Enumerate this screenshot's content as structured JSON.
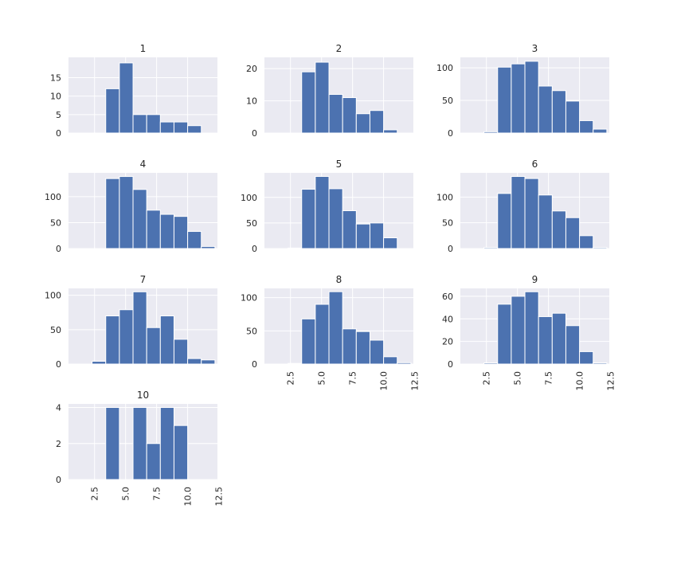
{
  "chart_data": {
    "type": "histogram-grid",
    "x_ticks": [
      "2.5",
      "5.0",
      "7.5",
      "10.0",
      "12.5"
    ],
    "x_tick_values": [
      2.5,
      5.0,
      7.5,
      10.0,
      12.5
    ],
    "xlim": [
      0.4,
      12.4
    ],
    "bin_edges": [
      1.2,
      2.3,
      3.4,
      4.5,
      5.6,
      6.7,
      7.8,
      8.9,
      10.0,
      11.1,
      12.2
    ],
    "bar_color": "#4c72b0",
    "background_color": "#eaeaf2",
    "grid": true,
    "panels": [
      {
        "title": "1",
        "values": [
          0,
          0,
          12,
          19,
          5,
          5,
          3,
          3,
          2,
          0
        ],
        "ylim": [
          0,
          20.5
        ],
        "yticks": [
          0,
          5,
          10,
          15
        ],
        "ytick_labels": [
          "0",
          "5",
          "10",
          "15"
        ]
      },
      {
        "title": "2",
        "values": [
          0,
          0,
          19,
          22,
          12,
          11,
          6,
          7,
          1,
          0
        ],
        "ylim": [
          0,
          23.5
        ],
        "yticks": [
          0,
          10,
          20
        ],
        "ytick_labels": [
          "0",
          "10",
          "20"
        ]
      },
      {
        "title": "3",
        "values": [
          0,
          2,
          101,
          106,
          110,
          72,
          65,
          49,
          19,
          6
        ],
        "ylim": [
          0,
          116
        ],
        "yticks": [
          0,
          50,
          100
        ],
        "ytick_labels": [
          "0",
          "50",
          "100"
        ]
      },
      {
        "title": "4",
        "values": [
          0,
          0,
          135,
          139,
          114,
          74,
          66,
          62,
          33,
          4
        ],
        "ylim": [
          0,
          146
        ],
        "yticks": [
          0,
          50,
          100
        ],
        "ytick_labels": [
          "0",
          "50",
          "100"
        ]
      },
      {
        "title": "5",
        "values": [
          0,
          1,
          116,
          141,
          117,
          74,
          48,
          50,
          21,
          0
        ],
        "ylim": [
          0,
          148
        ],
        "yticks": [
          0,
          50,
          100
        ],
        "ytick_labels": [
          "0",
          "50",
          "100"
        ]
      },
      {
        "title": "6",
        "values": [
          0,
          2,
          107,
          140,
          136,
          104,
          73,
          60,
          25,
          2
        ],
        "ylim": [
          0,
          147
        ],
        "yticks": [
          0,
          50,
          100
        ],
        "ytick_labels": [
          "0",
          "50",
          "100"
        ]
      },
      {
        "title": "7",
        "values": [
          0,
          4,
          70,
          79,
          105,
          53,
          70,
          36,
          8,
          6
        ],
        "ylim": [
          0,
          110
        ],
        "yticks": [
          0,
          50,
          100
        ],
        "ytick_labels": [
          "0",
          "50",
          "100"
        ]
      },
      {
        "title": "8",
        "values": [
          0,
          1,
          68,
          90,
          109,
          53,
          49,
          36,
          11,
          2
        ],
        "ylim": [
          0,
          114
        ],
        "yticks": [
          0,
          50,
          100
        ],
        "ytick_labels": [
          "0",
          "50",
          "100"
        ]
      },
      {
        "title": "9",
        "values": [
          0,
          1,
          53,
          60,
          64,
          42,
          45,
          34,
          11,
          1
        ],
        "ylim": [
          0,
          67
        ],
        "yticks": [
          0,
          20,
          40,
          60
        ],
        "ytick_labels": [
          "0",
          "20",
          "40",
          "60"
        ]
      },
      {
        "title": "10",
        "values": [
          0,
          0,
          4,
          0,
          4,
          2,
          4,
          3,
          0,
          0
        ],
        "ylim": [
          0,
          4.2
        ],
        "yticks": [
          0,
          2,
          4
        ],
        "ytick_labels": [
          "0",
          "2",
          "4"
        ]
      }
    ]
  }
}
